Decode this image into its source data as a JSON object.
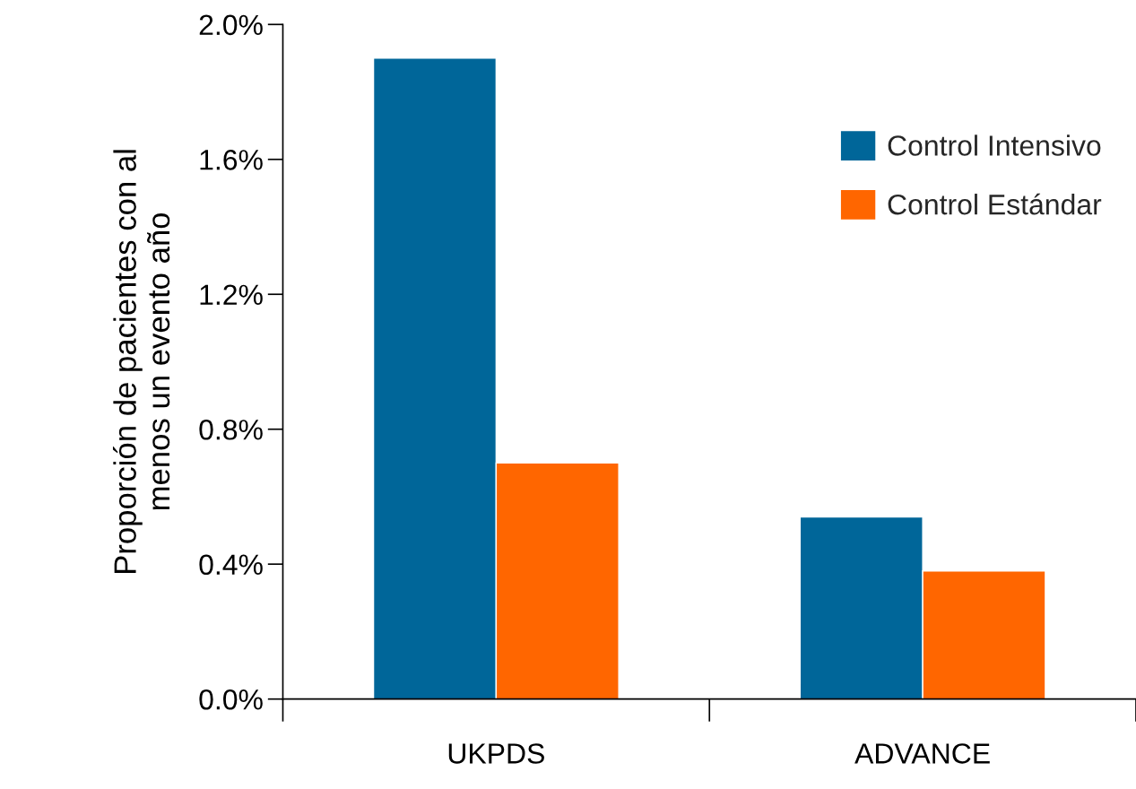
{
  "chart_data": {
    "type": "bar",
    "ylabel": "Proporción de pacientes con al\nmenos un evento año",
    "categories": [
      "UKPDS",
      "ADVANCE"
    ],
    "series": [
      {
        "name": "Control Intensivo",
        "color": "#006699",
        "values": [
          1.9,
          0.54
        ]
      },
      {
        "name": "Control Estándar",
        "color": "#ff6600",
        "values": [
          0.7,
          0.38
        ]
      }
    ],
    "ylim": [
      0,
      2.0
    ],
    "yticks": [
      {
        "value": 0,
        "label": "0.0%"
      },
      {
        "value": 0.4,
        "label": "0.4%"
      },
      {
        "value": 0.8,
        "label": "0.8%"
      },
      {
        "value": 1.2,
        "label": "1.2%"
      },
      {
        "value": 1.6,
        "label": "1.6%"
      },
      {
        "value": 2.0,
        "label": "2.0%"
      }
    ],
    "grid": false,
    "legend": "top right"
  }
}
